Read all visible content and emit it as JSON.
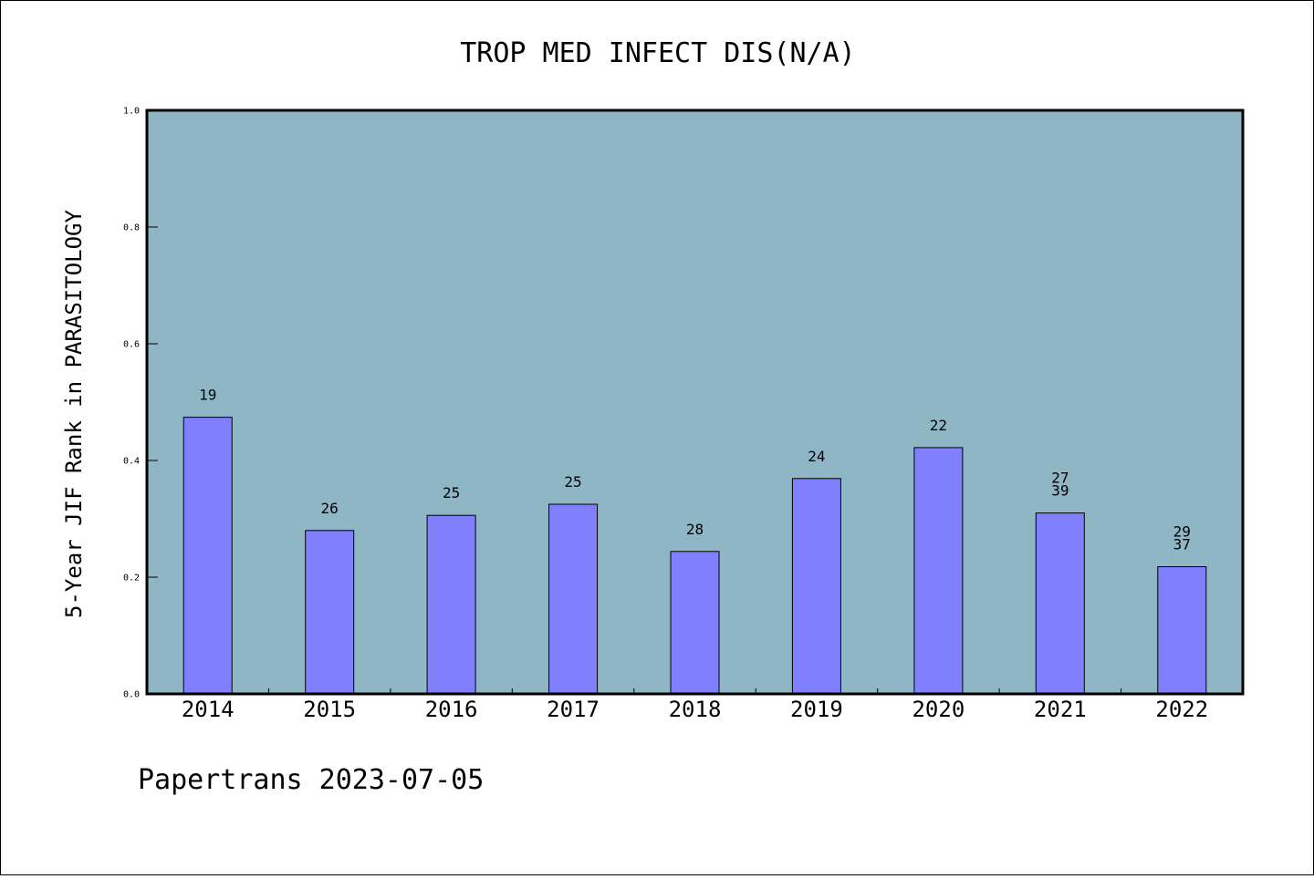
{
  "colors": {
    "plot_background": "#8fb6c4",
    "bar_fill": "#8080ff",
    "bar_stroke": "#000000",
    "page_background": "#ffffff"
  },
  "footer": "Papertrans 2023-07-05",
  "chart_data": {
    "type": "bar",
    "title": "TROP MED INFECT DIS(N/A)",
    "xlabel": "",
    "ylabel": "5-Year JIF Rank in PARASITOLOGY",
    "ylim": [
      0,
      1.0
    ],
    "yticks": [
      "0.0",
      "0.2",
      "0.4",
      "0.6",
      "0.8",
      "1.0"
    ],
    "grid": false,
    "categories": [
      "2014",
      "2015",
      "2016",
      "2017",
      "2018",
      "2019",
      "2020",
      "2021",
      "2022"
    ],
    "values": [
      0.474,
      0.28,
      0.306,
      0.325,
      0.244,
      0.369,
      0.422,
      0.31,
      0.218
    ],
    "data_labels": [
      [
        "19"
      ],
      [
        "26"
      ],
      [
        "25"
      ],
      [
        "25"
      ],
      [
        "28"
      ],
      [
        "24"
      ],
      [
        "22"
      ],
      [
        "27",
        "39"
      ],
      [
        "29",
        "37"
      ]
    ]
  }
}
